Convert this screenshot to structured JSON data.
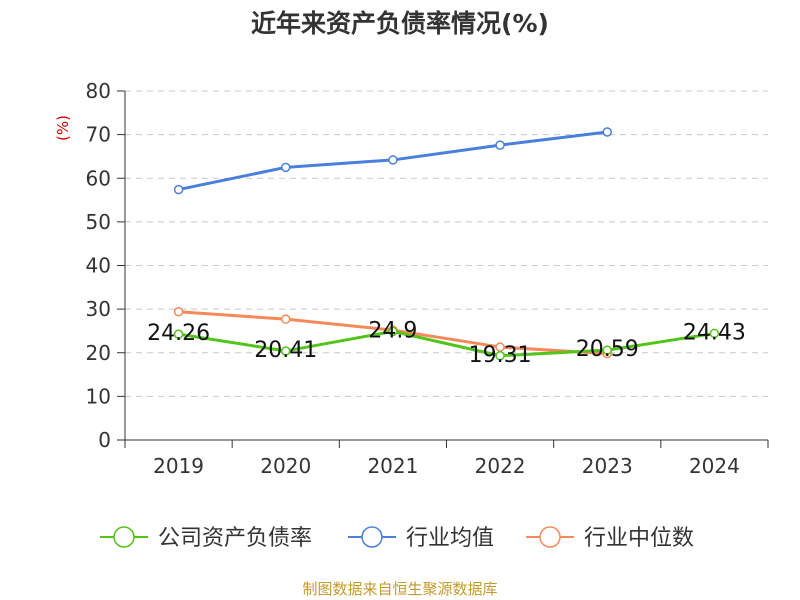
{
  "chart_data": {
    "type": "line",
    "title": "近年来资产负债率情况(%)",
    "ylabel": "(%)",
    "xlabel": "",
    "categories": [
      "2019",
      "2020",
      "2021",
      "2022",
      "2023",
      "2024"
    ],
    "ylim": [
      0,
      80
    ],
    "yticks": [
      0,
      10,
      20,
      30,
      40,
      50,
      60,
      70,
      80
    ],
    "grid": "horizontal-dashed",
    "legend_position": "bottom",
    "series": [
      {
        "name": "公司资产负债率",
        "color": "#52c41a",
        "values": [
          24.26,
          20.41,
          24.9,
          19.31,
          20.59,
          24.43
        ],
        "labels": [
          "24.26",
          "20.41",
          "24.9",
          "19.31",
          "20.59",
          "24.43"
        ]
      },
      {
        "name": "行业均值",
        "color": "#4a7fdc",
        "values": [
          57.4,
          62.5,
          64.2,
          67.6,
          70.6,
          null
        ],
        "labels": []
      },
      {
        "name": "行业中位数",
        "color": "#f5895a",
        "values": [
          29.4,
          27.7,
          25.2,
          21.3,
          19.8,
          null
        ],
        "labels": []
      }
    ]
  },
  "source": "制图数据来自恒生聚源数据库"
}
